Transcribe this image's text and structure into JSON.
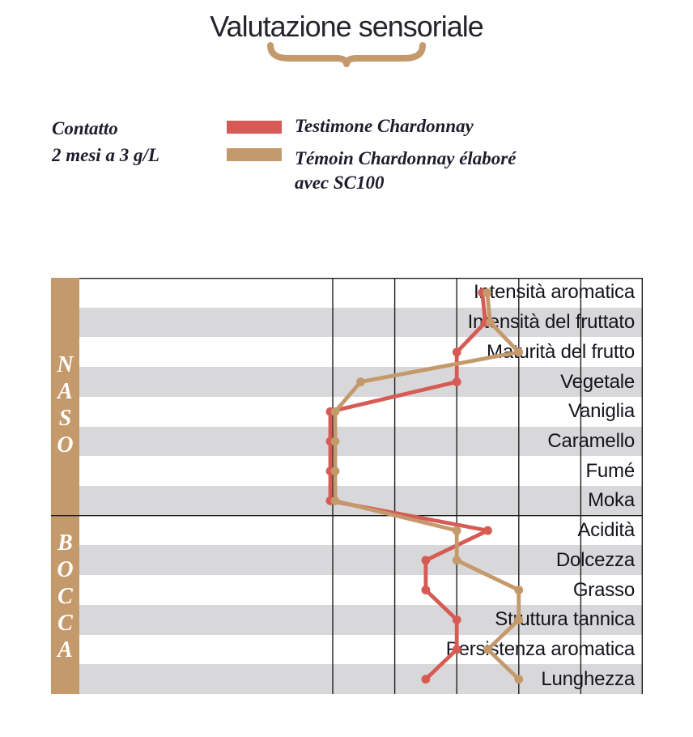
{
  "title": "Valutazione sensoriale",
  "legend": {
    "contact_line1": "Contatto",
    "contact_line2": "2 mesi a 3 g/L",
    "series": [
      {
        "label_line1": "Testimone Chardonnay",
        "label_line2": "",
        "color": "#d65b54"
      },
      {
        "label_line1": "Témoin Chardonnay élaboré",
        "label_line2": "avec SC100",
        "color": "#c4996b"
      }
    ]
  },
  "sections": [
    {
      "name": "NASO",
      "letters": [
        "N",
        "A",
        "S",
        "O"
      ],
      "row_span": [
        0,
        8
      ]
    },
    {
      "name": "BOCCA",
      "letters": [
        "B",
        "O",
        "C",
        "C",
        "A"
      ],
      "row_span": [
        8,
        14
      ]
    }
  ],
  "chart_data": {
    "type": "line",
    "orientation": "horizontal-category",
    "title": "Valutazione sensoriale",
    "categories": [
      "Intensità aromatica",
      "Intensità del fruttato",
      "Maturità del frutto",
      "Vegetale",
      "Vaniglia",
      "Caramello",
      "Fumé",
      "Moka",
      "Acidità",
      "Dolcezza",
      "Grasso",
      "Struttura tannica",
      "Persistenza aromatica",
      "Lunghezza"
    ],
    "series": [
      {
        "name": "Testimone Chardonnay",
        "color": "#d65b54",
        "values": [
          2.45,
          2.5,
          2.0,
          2.0,
          0,
          0,
          0,
          0,
          2.5,
          1.5,
          1.5,
          2.0,
          2.0,
          1.5
        ]
      },
      {
        "name": "Témoin Chardonnay élaboré avec SC100",
        "color": "#c4996b",
        "values": [
          2.45,
          2.5,
          3.0,
          0.45,
          0,
          0,
          0,
          0,
          2.0,
          2.0,
          3.0,
          3.0,
          2.5,
          3.0
        ]
      }
    ],
    "value_axis": {
      "min": 0,
      "max": 5,
      "gridline_step": 1,
      "tick_labels_visible": false
    },
    "grid": true,
    "legend_position": "top-left",
    "stripe_colors": [
      "#ffffff",
      "#d8d8da"
    ]
  },
  "colors": {
    "band_tan": "#c4996b",
    "stripe_gray": "#d8d8da",
    "grid_line": "#1f1f1f",
    "label_text": "#14141c",
    "legend_text": "#1c1c2c",
    "band_letter": "#ffffff"
  }
}
